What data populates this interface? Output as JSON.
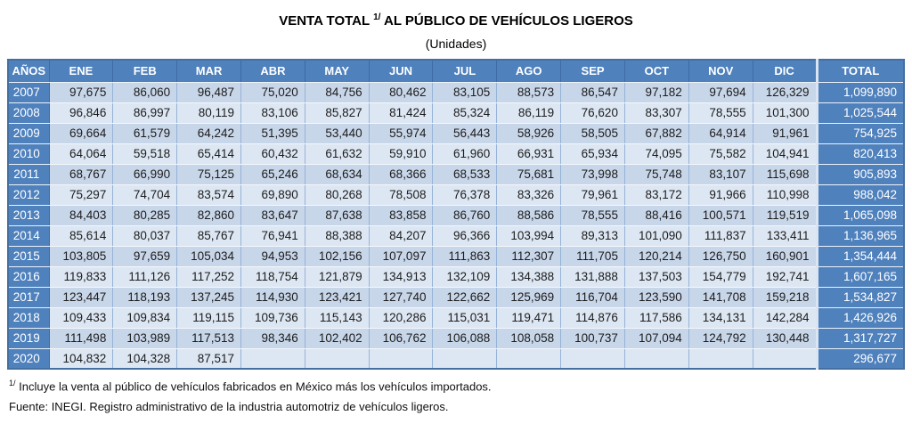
{
  "title": {
    "prefix": "VENTA TOTAL",
    "superscript": "1/",
    "suffix": "AL PÚBLICO DE VEHÍCULOS LIGEROS",
    "subtitle": "(Unidades)"
  },
  "colors": {
    "header_blue": "#4f81bd",
    "band_dark": "#c8d6e9",
    "band_light": "#dde7f3",
    "grid_blue": "#95b3d7",
    "outer_blue": "#4470a1",
    "header_sep": "#3d6ba5",
    "text_dark": "#1c1c1c"
  },
  "table": {
    "headers": [
      "AÑOS",
      "ENE",
      "FEB",
      "MAR",
      "ABR",
      "MAY",
      "JUN",
      "JUL",
      "AGO",
      "SEP",
      "OCT",
      "NOV",
      "DIC",
      "TOTAL"
    ],
    "rows": [
      {
        "year": "2007",
        "values": [
          "97,675",
          "86,060",
          "96,487",
          "75,020",
          "84,756",
          "80,462",
          "83,105",
          "88,573",
          "86,547",
          "97,182",
          "97,694",
          "126,329"
        ],
        "total": "1,099,890"
      },
      {
        "year": "2008",
        "values": [
          "96,846",
          "86,997",
          "80,119",
          "83,106",
          "85,827",
          "81,424",
          "85,324",
          "86,119",
          "76,620",
          "83,307",
          "78,555",
          "101,300"
        ],
        "total": "1,025,544"
      },
      {
        "year": "2009",
        "values": [
          "69,664",
          "61,579",
          "64,242",
          "51,395",
          "53,440",
          "55,974",
          "56,443",
          "58,926",
          "58,505",
          "67,882",
          "64,914",
          "91,961"
        ],
        "total": "754,925"
      },
      {
        "year": "2010",
        "values": [
          "64,064",
          "59,518",
          "65,414",
          "60,432",
          "61,632",
          "59,910",
          "61,960",
          "66,931",
          "65,934",
          "74,095",
          "75,582",
          "104,941"
        ],
        "total": "820,413"
      },
      {
        "year": "2011",
        "values": [
          "68,767",
          "66,990",
          "75,125",
          "65,246",
          "68,634",
          "68,366",
          "68,533",
          "75,681",
          "73,998",
          "75,748",
          "83,107",
          "115,698"
        ],
        "total": "905,893"
      },
      {
        "year": "2012",
        "values": [
          "75,297",
          "74,704",
          "83,574",
          "69,890",
          "80,268",
          "78,508",
          "76,378",
          "83,326",
          "79,961",
          "83,172",
          "91,966",
          "110,998"
        ],
        "total": "988,042"
      },
      {
        "year": "2013",
        "values": [
          "84,403",
          "80,285",
          "82,860",
          "83,647",
          "87,638",
          "83,858",
          "86,760",
          "88,586",
          "78,555",
          "88,416",
          "100,571",
          "119,519"
        ],
        "total": "1,065,098"
      },
      {
        "year": "2014",
        "values": [
          "85,614",
          "80,037",
          "85,767",
          "76,941",
          "88,388",
          "84,207",
          "96,366",
          "103,994",
          "89,313",
          "101,090",
          "111,837",
          "133,411"
        ],
        "total": "1,136,965"
      },
      {
        "year": "2015",
        "values": [
          "103,805",
          "97,659",
          "105,034",
          "94,953",
          "102,156",
          "107,097",
          "111,863",
          "112,307",
          "111,705",
          "120,214",
          "126,750",
          "160,901"
        ],
        "total": "1,354,444"
      },
      {
        "year": "2016",
        "values": [
          "119,833",
          "111,126",
          "117,252",
          "118,754",
          "121,879",
          "134,913",
          "132,109",
          "134,388",
          "131,888",
          "137,503",
          "154,779",
          "192,741"
        ],
        "total": "1,607,165"
      },
      {
        "year": "2017",
        "values": [
          "123,447",
          "118,193",
          "137,245",
          "114,930",
          "123,421",
          "127,740",
          "122,662",
          "125,969",
          "116,704",
          "123,590",
          "141,708",
          "159,218"
        ],
        "total": "1,534,827"
      },
      {
        "year": "2018",
        "values": [
          "109,433",
          "109,834",
          "119,115",
          "109,736",
          "115,143",
          "120,286",
          "115,031",
          "119,471",
          "114,876",
          "117,586",
          "134,131",
          "142,284"
        ],
        "total": "1,426,926"
      },
      {
        "year": "2019",
        "values": [
          "111,498",
          "103,989",
          "117,513",
          "98,346",
          "102,402",
          "106,762",
          "106,088",
          "108,058",
          "100,737",
          "107,094",
          "124,792",
          "130,448"
        ],
        "total": "1,317,727"
      },
      {
        "year": "2020",
        "values": [
          "104,832",
          "104,328",
          "87,517",
          "",
          "",
          "",
          "",
          "",
          "",
          "",
          "",
          ""
        ],
        "total": "296,677"
      }
    ]
  },
  "chart_data": {
    "type": "table",
    "title": "VENTA TOTAL 1/ AL PÚBLICO DE VEHÍCULOS LIGEROS",
    "subtitle": "(Unidades)",
    "categories": [
      "ENE",
      "FEB",
      "MAR",
      "ABR",
      "MAY",
      "JUN",
      "JUL",
      "AGO",
      "SEP",
      "OCT",
      "NOV",
      "DIC"
    ],
    "series": [
      {
        "name": "2007",
        "values": [
          97675,
          86060,
          96487,
          75020,
          84756,
          80462,
          83105,
          88573,
          86547,
          97182,
          97694,
          126329
        ],
        "total": 1099890
      },
      {
        "name": "2008",
        "values": [
          96846,
          86997,
          80119,
          83106,
          85827,
          81424,
          85324,
          86119,
          76620,
          83307,
          78555,
          101300
        ],
        "total": 1025544
      },
      {
        "name": "2009",
        "values": [
          69664,
          61579,
          64242,
          51395,
          53440,
          55974,
          56443,
          58926,
          58505,
          67882,
          64914,
          91961
        ],
        "total": 754925
      },
      {
        "name": "2010",
        "values": [
          64064,
          59518,
          65414,
          60432,
          61632,
          59910,
          61960,
          66931,
          65934,
          74095,
          75582,
          104941
        ],
        "total": 820413
      },
      {
        "name": "2011",
        "values": [
          68767,
          66990,
          75125,
          65246,
          68634,
          68366,
          68533,
          75681,
          73998,
          75748,
          83107,
          115698
        ],
        "total": 905893
      },
      {
        "name": "2012",
        "values": [
          75297,
          74704,
          83574,
          69890,
          80268,
          78508,
          76378,
          83326,
          79961,
          83172,
          91966,
          110998
        ],
        "total": 988042
      },
      {
        "name": "2013",
        "values": [
          84403,
          80285,
          82860,
          83647,
          87638,
          83858,
          86760,
          88586,
          78555,
          88416,
          100571,
          119519
        ],
        "total": 1065098
      },
      {
        "name": "2014",
        "values": [
          85614,
          80037,
          85767,
          76941,
          88388,
          84207,
          96366,
          103994,
          89313,
          101090,
          111837,
          133411
        ],
        "total": 1136965
      },
      {
        "name": "2015",
        "values": [
          103805,
          97659,
          105034,
          94953,
          102156,
          107097,
          111863,
          112307,
          111705,
          120214,
          126750,
          160901
        ],
        "total": 1354444
      },
      {
        "name": "2016",
        "values": [
          119833,
          111126,
          117252,
          118754,
          121879,
          134913,
          132109,
          134388,
          131888,
          137503,
          154779,
          192741
        ],
        "total": 1607165
      },
      {
        "name": "2017",
        "values": [
          123447,
          118193,
          137245,
          114930,
          123421,
          127740,
          122662,
          125969,
          116704,
          123590,
          141708,
          159218
        ],
        "total": 1534827
      },
      {
        "name": "2018",
        "values": [
          109433,
          109834,
          119115,
          109736,
          115143,
          120286,
          115031,
          119471,
          114876,
          117586,
          134131,
          142284
        ],
        "total": 1426926
      },
      {
        "name": "2019",
        "values": [
          111498,
          103989,
          117513,
          98346,
          102402,
          106762,
          106088,
          108058,
          100737,
          107094,
          124792,
          130448
        ],
        "total": 1317727
      },
      {
        "name": "2020",
        "values": [
          104832,
          104328,
          87517,
          null,
          null,
          null,
          null,
          null,
          null,
          null,
          null,
          null
        ],
        "total": 296677
      }
    ]
  },
  "footnotes": {
    "marker": "1/",
    "note": "Incluye la venta al público de vehículos fabricados en México más los vehículos importados.",
    "source": "Fuente: INEGI. Registro administrativo de la industria automotriz de vehículos ligeros."
  }
}
